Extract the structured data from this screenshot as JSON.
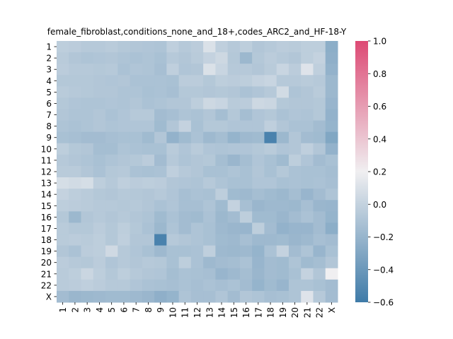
{
  "chart_data": {
    "type": "heatmap",
    "title": "female_fibroblast,conditions_none_and_18+,codes_ARC2_and_HF-18-Y",
    "xlabel": "",
    "ylabel": "",
    "row_labels": [
      "1",
      "2",
      "3",
      "4",
      "5",
      "6",
      "7",
      "8",
      "9",
      "10",
      "11",
      "12",
      "13",
      "14",
      "15",
      "16",
      "17",
      "18",
      "19",
      "20",
      "21",
      "22",
      "X"
    ],
    "col_labels": [
      "1",
      "2",
      "3",
      "4",
      "5",
      "6",
      "7",
      "8",
      "9",
      "10",
      "11",
      "12",
      "13",
      "14",
      "15",
      "16",
      "17",
      "18",
      "19",
      "20",
      "21",
      "22",
      "X"
    ],
    "colorbar": {
      "min": -0.6,
      "max": 1.0,
      "center": 0.2,
      "ticks": [
        -0.6,
        -0.4,
        -0.2,
        0.0,
        0.2,
        0.4,
        0.6,
        0.8,
        1.0
      ],
      "tick_labels": [
        "−0.6",
        "−0.4",
        "−0.2",
        "0.0",
        "0.2",
        "0.4",
        "0.6",
        "0.8",
        "1.0"
      ],
      "colors": {
        "low": "#3f7ba8",
        "mid": "#f0eff1",
        "high": "#dd4a74"
      }
    },
    "values": [
      [
        -0.03,
        -0.04,
        -0.06,
        -0.06,
        -0.05,
        -0.07,
        -0.08,
        -0.09,
        -0.1,
        -0.02,
        -0.06,
        -0.04,
        0.1,
        -0.02,
        -0.06,
        -0.03,
        -0.08,
        -0.06,
        -0.04,
        -0.05,
        -0.03,
        -0.03,
        -0.25
      ],
      [
        -0.05,
        -0.08,
        -0.1,
        -0.09,
        -0.08,
        -0.1,
        -0.11,
        -0.1,
        -0.12,
        -0.06,
        -0.08,
        -0.05,
        0.0,
        0.04,
        -0.07,
        -0.18,
        -0.07,
        -0.04,
        -0.06,
        -0.08,
        -0.03,
        0.0,
        -0.24
      ],
      [
        -0.04,
        -0.06,
        -0.06,
        -0.07,
        -0.06,
        -0.11,
        -0.09,
        -0.1,
        -0.13,
        -0.02,
        -0.09,
        -0.08,
        0.1,
        0.02,
        -0.06,
        -0.06,
        -0.08,
        -0.05,
        0.02,
        -0.04,
        0.12,
        -0.02,
        -0.22
      ],
      [
        -0.07,
        -0.07,
        -0.07,
        -0.08,
        -0.09,
        -0.08,
        -0.11,
        -0.11,
        -0.11,
        -0.12,
        -0.04,
        -0.04,
        -0.07,
        -0.03,
        -0.04,
        -0.03,
        0.0,
        0.02,
        -0.06,
        -0.06,
        -0.05,
        -0.06,
        -0.18
      ],
      [
        -0.05,
        -0.06,
        -0.07,
        -0.08,
        -0.08,
        -0.1,
        -0.1,
        -0.12,
        -0.11,
        -0.13,
        -0.07,
        -0.07,
        -0.08,
        -0.07,
        -0.08,
        -0.11,
        -0.09,
        -0.06,
        0.06,
        -0.1,
        -0.08,
        -0.05,
        -0.18
      ],
      [
        -0.07,
        -0.09,
        -0.1,
        -0.1,
        -0.09,
        -0.1,
        -0.08,
        -0.11,
        -0.1,
        -0.08,
        -0.08,
        -0.03,
        0.04,
        0.02,
        -0.05,
        -0.04,
        0.04,
        0.03,
        -0.07,
        -0.08,
        -0.08,
        -0.07,
        -0.2
      ],
      [
        -0.08,
        -0.1,
        -0.1,
        -0.08,
        -0.11,
        -0.09,
        -0.06,
        -0.06,
        -0.15,
        -0.13,
        -0.1,
        -0.11,
        -0.08,
        -0.14,
        -0.07,
        -0.14,
        -0.09,
        -0.07,
        -0.11,
        -0.09,
        -0.1,
        -0.07,
        -0.22
      ],
      [
        -0.1,
        -0.11,
        -0.1,
        -0.08,
        -0.1,
        -0.09,
        -0.09,
        -0.09,
        -0.16,
        -0.08,
        0.0,
        -0.12,
        -0.07,
        -0.07,
        -0.09,
        -0.09,
        -0.09,
        -0.02,
        -0.08,
        -0.11,
        -0.11,
        -0.15,
        -0.21
      ],
      [
        -0.12,
        -0.13,
        -0.15,
        -0.15,
        -0.13,
        -0.12,
        -0.12,
        -0.16,
        -0.08,
        -0.22,
        -0.16,
        -0.11,
        -0.17,
        -0.14,
        -0.21,
        -0.17,
        -0.16,
        -0.55,
        -0.18,
        -0.08,
        -0.15,
        -0.16,
        -0.3
      ],
      [
        -0.03,
        -0.07,
        -0.08,
        -0.14,
        -0.14,
        -0.1,
        -0.11,
        -0.12,
        -0.12,
        -0.05,
        -0.09,
        -0.05,
        -0.09,
        -0.1,
        -0.09,
        -0.09,
        -0.07,
        -0.05,
        -0.09,
        -0.08,
        -0.02,
        -0.08,
        -0.22
      ],
      [
        -0.06,
        -0.08,
        -0.1,
        -0.12,
        -0.1,
        -0.08,
        -0.07,
        -0.04,
        -0.15,
        -0.06,
        -0.1,
        -0.08,
        -0.07,
        -0.14,
        -0.19,
        -0.14,
        -0.09,
        -0.12,
        -0.16,
        -0.03,
        -0.09,
        -0.15,
        -0.12
      ],
      [
        -0.05,
        -0.05,
        -0.08,
        -0.11,
        -0.07,
        -0.06,
        -0.11,
        -0.12,
        -0.11,
        -0.02,
        -0.06,
        -0.08,
        -0.12,
        -0.12,
        -0.1,
        -0.12,
        -0.08,
        -0.12,
        -0.07,
        -0.11,
        -0.12,
        -0.12,
        -0.14
      ],
      [
        0.08,
        0.06,
        0.08,
        -0.03,
        -0.06,
        -0.02,
        -0.04,
        -0.03,
        -0.04,
        -0.08,
        -0.09,
        -0.1,
        -0.06,
        -0.1,
        -0.12,
        -0.12,
        -0.09,
        -0.09,
        -0.12,
        -0.11,
        -0.12,
        -0.11,
        -0.13
      ],
      [
        0.0,
        -0.03,
        -0.05,
        -0.07,
        -0.08,
        -0.06,
        -0.07,
        -0.08,
        -0.06,
        -0.09,
        -0.13,
        -0.11,
        -0.12,
        -0.03,
        -0.16,
        -0.17,
        -0.14,
        -0.16,
        -0.18,
        -0.14,
        -0.2,
        -0.15,
        -0.1
      ],
      [
        -0.03,
        -0.04,
        -0.05,
        -0.06,
        -0.06,
        -0.07,
        -0.06,
        -0.08,
        -0.11,
        -0.09,
        -0.13,
        -0.13,
        -0.1,
        -0.16,
        0.0,
        -0.13,
        -0.19,
        -0.17,
        -0.17,
        -0.18,
        -0.13,
        -0.19,
        -0.2
      ],
      [
        -0.07,
        -0.18,
        -0.08,
        -0.06,
        -0.08,
        -0.06,
        -0.08,
        -0.1,
        -0.16,
        -0.11,
        -0.15,
        -0.16,
        -0.11,
        -0.18,
        -0.15,
        -0.03,
        -0.16,
        -0.16,
        -0.19,
        -0.15,
        -0.11,
        -0.15,
        -0.21
      ],
      [
        -0.05,
        -0.07,
        -0.07,
        -0.04,
        -0.07,
        -0.03,
        -0.07,
        -0.11,
        -0.18,
        -0.1,
        -0.15,
        -0.1,
        -0.12,
        -0.17,
        -0.19,
        -0.2,
        -0.03,
        -0.15,
        -0.22,
        -0.2,
        -0.2,
        -0.15,
        -0.25
      ],
      [
        -0.05,
        -0.04,
        -0.05,
        -0.03,
        -0.07,
        -0.02,
        -0.08,
        -0.08,
        -0.55,
        -0.06,
        -0.08,
        -0.1,
        -0.12,
        -0.16,
        -0.17,
        -0.13,
        -0.17,
        -0.17,
        -0.16,
        -0.19,
        -0.17,
        -0.13,
        -0.15
      ],
      [
        -0.08,
        -0.11,
        -0.04,
        -0.03,
        0.05,
        -0.06,
        -0.09,
        -0.12,
        -0.17,
        -0.12,
        -0.12,
        -0.11,
        -0.02,
        -0.17,
        -0.18,
        -0.17,
        -0.21,
        -0.11,
        0.0,
        -0.15,
        -0.1,
        -0.2,
        -0.12
      ],
      [
        -0.04,
        -0.06,
        -0.07,
        -0.04,
        -0.09,
        -0.06,
        -0.08,
        -0.06,
        -0.07,
        -0.12,
        -0.03,
        -0.11,
        -0.17,
        -0.15,
        -0.14,
        -0.11,
        -0.2,
        -0.15,
        -0.16,
        -0.1,
        -0.16,
        -0.14,
        -0.08
      ],
      [
        -0.05,
        -0.03,
        0.03,
        -0.03,
        -0.07,
        -0.03,
        -0.06,
        -0.08,
        -0.09,
        -0.14,
        -0.11,
        -0.12,
        -0.13,
        -0.2,
        -0.17,
        -0.14,
        -0.19,
        -0.15,
        -0.16,
        -0.12,
        0.0,
        -0.08,
        0.2
      ],
      [
        -0.05,
        -0.04,
        -0.02,
        -0.04,
        -0.06,
        -0.06,
        -0.09,
        -0.11,
        -0.12,
        -0.13,
        -0.11,
        -0.13,
        -0.11,
        -0.13,
        -0.11,
        -0.15,
        -0.21,
        -0.16,
        -0.2,
        -0.1,
        -0.1,
        -0.12,
        -0.15
      ],
      [
        -0.15,
        -0.19,
        -0.18,
        -0.17,
        -0.16,
        -0.16,
        -0.17,
        -0.19,
        -0.24,
        -0.21,
        -0.1,
        -0.13,
        -0.13,
        -0.09,
        -0.15,
        -0.08,
        -0.1,
        -0.13,
        -0.12,
        -0.1,
        0.12,
        -0.06,
        -0.15
      ]
    ]
  }
}
